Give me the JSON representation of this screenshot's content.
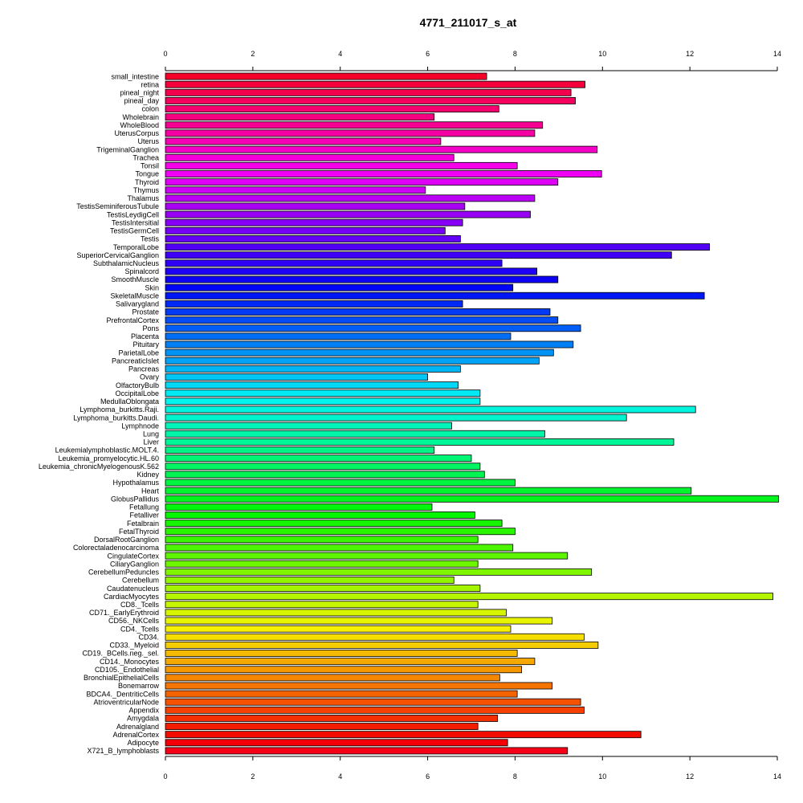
{
  "chart_data": {
    "type": "bar",
    "orientation": "horizontal",
    "title": "4771_211017_s_at",
    "xlabel": "",
    "ylabel": "",
    "xlim": [
      0,
      14
    ],
    "ticks": [
      0,
      2,
      4,
      6,
      8,
      10,
      12,
      14
    ],
    "grid": false,
    "legend": "none",
    "categories": [
      "small_intestine",
      "retina",
      "pineal_night",
      "pineal_day",
      "colon",
      "Wholebrain",
      "WholeBlood",
      "UterusCorpus",
      "Uterus",
      "TrigeminalGanglion",
      "Trachea",
      "Tonsil",
      "Tongue",
      "Thyroid",
      "Thymus",
      "Thalamus",
      "TestisSeminiferousTubule",
      "TestisLeydigCell",
      "TestisIntersitial",
      "TestisGermCell",
      "Testis",
      "TemporalLobe",
      "SuperiorCervicalGanglion",
      "SubthalamicNucleus",
      "Spinalcord",
      "SmoothMuscle",
      "Skin",
      "SkeletalMuscle",
      "Salivarygland",
      "Prostate",
      "PrefrontalCortex",
      "Pons",
      "Placenta",
      "Pituitary",
      "ParietalLobe",
      "PancreaticIslet",
      "Pancreas",
      "Ovary",
      "OlfactoryBulb",
      "OccipitalLobe",
      "MedullaOblongata",
      "Lymphoma_burkitts.Raji.",
      "Lymphoma_burkitts.Daudi.",
      "Lymphnode",
      "Lung",
      "Liver",
      "Leukemialymphoblastic.MOLT.4.",
      "Leukemia_promyelocytic.HL.60",
      "Leukemia_chronicMyelogenousK.562",
      "Kidney",
      "Hypothalamus",
      "Heart",
      "GlobusPallidus",
      "Fetallung",
      "Fetalliver",
      "Fetalbrain",
      "FetalThyroid",
      "DorsalRootGanglion",
      "Colorectaladenocarcinoma",
      "CingulateCortex",
      "CiliaryGanglion",
      "CerebellumPeduncles",
      "Cerebellum",
      "Caudatenucleus",
      "CardiacMyocytes",
      "CD8._Tcells",
      "CD71._EarlyErythroid",
      "CD56._NKCells",
      "CD4._Tcells",
      "CD34.",
      "CD33._Myeloid",
      "CD19._BCells.neg._sel.",
      "CD14._Monocytes",
      "CD105._Endothelial",
      "BronchialEpithelialCells",
      "Bonemarrow",
      "BDCA4._DentriticCells",
      "AtrioventricularNode",
      "Appendix",
      "Amygdala",
      "Adrenalgland",
      "AdrenalCortex",
      "Adipocyte",
      "X721_B_lymphoblasts"
    ],
    "values": [
      7.35,
      9.6,
      9.28,
      9.38,
      7.63,
      6.15,
      8.63,
      8.45,
      6.3,
      9.88,
      6.6,
      8.05,
      9.98,
      8.98,
      5.95,
      8.45,
      6.85,
      8.35,
      6.8,
      6.4,
      6.75,
      12.45,
      11.58,
      7.7,
      8.5,
      8.98,
      7.95,
      12.33,
      6.8,
      8.8,
      8.98,
      9.5,
      7.9,
      9.33,
      8.88,
      8.55,
      6.75,
      6.0,
      6.7,
      7.2,
      7.2,
      12.13,
      10.55,
      6.55,
      8.68,
      11.63,
      6.15,
      7.0,
      7.2,
      7.3,
      8.0,
      12.03,
      14.03,
      6.1,
      7.08,
      7.7,
      8.0,
      7.15,
      7.95,
      9.2,
      7.15,
      9.75,
      6.6,
      7.2,
      13.9,
      7.15,
      7.8,
      8.85,
      7.9,
      9.58,
      9.9,
      8.05,
      8.45,
      8.15,
      7.65,
      8.85,
      8.05,
      9.5,
      9.58,
      7.6,
      7.15,
      10.88,
      7.83,
      9.2
    ]
  }
}
